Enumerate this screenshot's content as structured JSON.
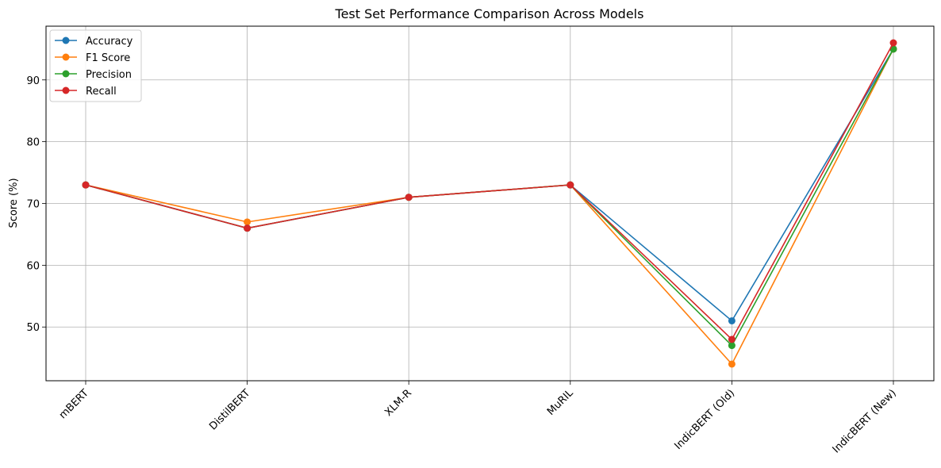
{
  "chart_data": {
    "type": "line",
    "title": "Test Set Performance Comparison Across Models",
    "xlabel": "",
    "ylabel": "Score (%)",
    "categories": [
      "mBERT",
      "DistilBERT",
      "XLM-R",
      "MuRIL",
      "IndicBERT (Old)",
      "IndicBERT (New)"
    ],
    "ylim": [
      41.3,
      98.7
    ],
    "yticks": [
      50,
      60,
      70,
      80,
      90
    ],
    "grid": true,
    "legend_position": "top-left",
    "series": [
      {
        "name": "Accuracy",
        "color": "#1f77b4",
        "values": [
          73,
          66,
          71,
          73,
          51,
          95
        ]
      },
      {
        "name": "F1 Score",
        "color": "#ff7f0e",
        "values": [
          73,
          67,
          71,
          73,
          44,
          95
        ]
      },
      {
        "name": "Precision",
        "color": "#2ca02c",
        "values": [
          73,
          66,
          71,
          73,
          47,
          95
        ]
      },
      {
        "name": "Recall",
        "color": "#d62728",
        "values": [
          73,
          66,
          71,
          73,
          48,
          96
        ]
      }
    ]
  }
}
